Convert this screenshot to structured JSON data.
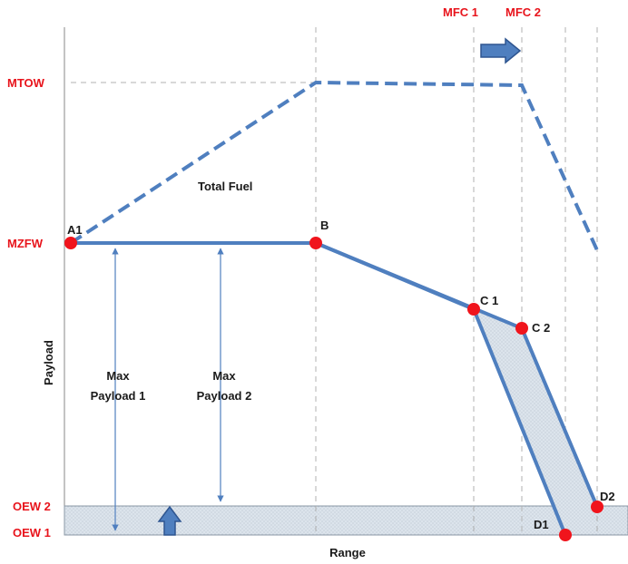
{
  "y_axis": {
    "title": "Payload",
    "levels": {
      "mtow": "MTOW",
      "mzfw": "MZFW",
      "oew2": "OEW 2",
      "oew1": "OEW 1"
    }
  },
  "x_axis": {
    "title": "Range"
  },
  "top_markers": {
    "mfc1": "MFC 1",
    "mfc2": "MFC 2"
  },
  "points": {
    "a1": "A1",
    "b": "B",
    "c1": "C 1",
    "c2": "C 2",
    "d1": "D1",
    "d2": "D2"
  },
  "annotations": {
    "total_fuel": "Total Fuel",
    "max_payload_1_line1": "Max",
    "max_payload_1_line2": "Payload 1",
    "max_payload_2_line1": "Max",
    "max_payload_2_line2": "Payload 2"
  },
  "colors": {
    "curve": "#4f7fbf",
    "label_red": "#e8141c",
    "point": "#f0141c",
    "grid": "#aaaaaa",
    "oew_band": "#dde5ec",
    "text": "#1a1a1a",
    "arrow_fill": "#4f7fbf",
    "arrow_edge": "#2e5590"
  }
}
